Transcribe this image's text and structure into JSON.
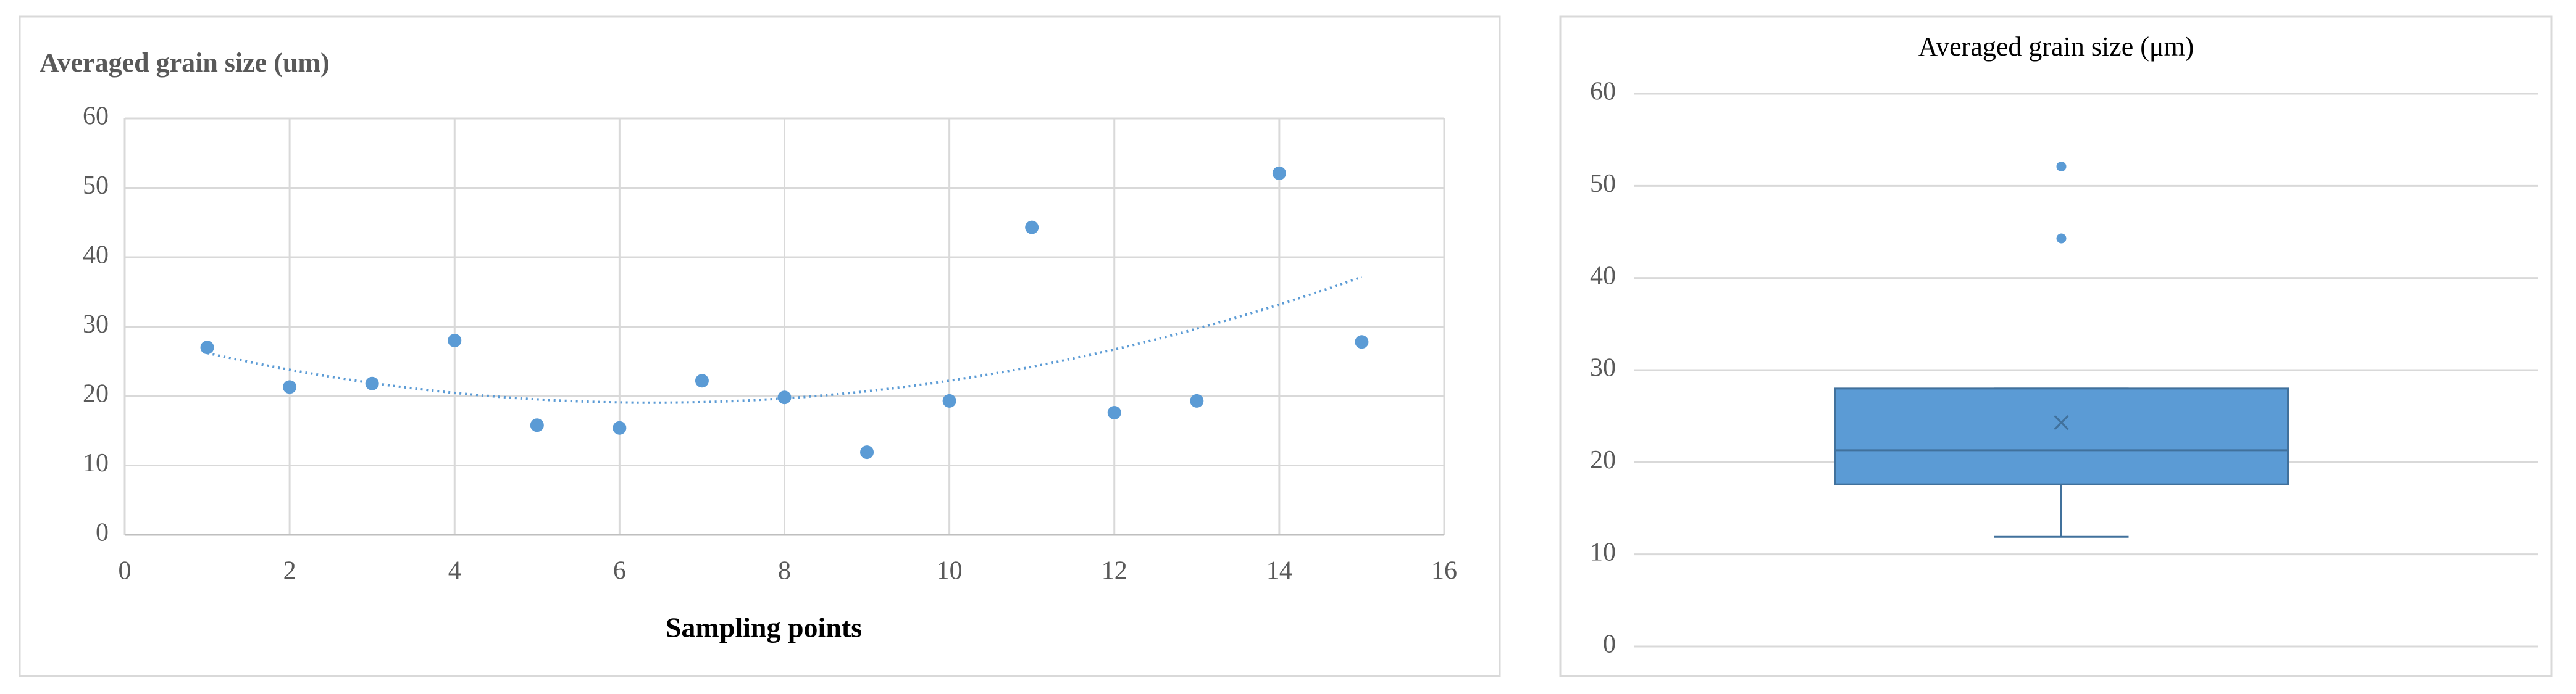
{
  "chart_data": [
    {
      "type": "scatter",
      "title": "Averaged grain size (um)",
      "x_label": "Sampling points",
      "x": [
        1,
        2,
        3,
        4,
        5,
        6,
        7,
        8,
        9,
        10,
        11,
        12,
        13,
        14,
        15
      ],
      "values": [
        27,
        21.3,
        21.8,
        28,
        15.8,
        15.4,
        22.2,
        19.8,
        11.9,
        19.3,
        44.3,
        17.6,
        19.3,
        52.1,
        27.8
      ],
      "color": "#5b9bd5",
      "trendline": "polynomial",
      "trendline_order": 2,
      "xlim": [
        0,
        16
      ],
      "xticks": [
        0,
        2,
        4,
        6,
        8,
        10,
        12,
        14,
        16
      ],
      "ylim": [
        0,
        60
      ],
      "yticks": [
        0,
        10,
        20,
        30,
        40,
        50,
        60
      ],
      "grid": "both"
    },
    {
      "type": "box",
      "title": "Averaged grain size (μm)",
      "min": 11.9,
      "q1": 17.6,
      "median": 21.3,
      "q3": 28,
      "max": 28,
      "mean": 24.3,
      "outliers": [
        44.3,
        52.1
      ],
      "color": "#5b9bd5",
      "ylim": [
        0,
        60
      ],
      "yticks": [
        0,
        10,
        20,
        30,
        40,
        50,
        60
      ],
      "grid": "y"
    }
  ]
}
